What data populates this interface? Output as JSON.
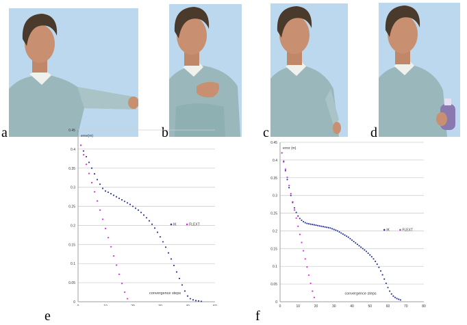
{
  "figure": {
    "panel_labels": {
      "a": "a",
      "b": "b",
      "c": "c",
      "d": "d",
      "e": "e",
      "f": "f"
    }
  },
  "colors": {
    "background_sky": "#bcd8ee",
    "shirt": "#9ab8bb",
    "skin": "#c89070",
    "hair": "#4a3a2c",
    "series_ik": "#2f3a9c",
    "series_flext": "#e02be0",
    "grid": "#cfcfcf"
  },
  "chart_data": [
    {
      "type": "scatter",
      "panel": "e",
      "ylabel": "error(m)",
      "xlabel": "convergence steps",
      "xlim": [
        0,
        50
      ],
      "ylim": [
        0,
        0.45
      ],
      "xticks": [
        "0",
        "10",
        "20",
        "30",
        "40",
        "50"
      ],
      "yticks": [
        "0",
        "0.05",
        "0.1",
        "0.15",
        "0.2",
        "0.25",
        "0.3",
        "0.35",
        "0.4",
        "0.45"
      ],
      "grid": true,
      "legend": {
        "placement": "right",
        "entries": [
          "IK",
          "FLEXT"
        ]
      },
      "series": [
        {
          "name": "IK",
          "x": [
            1,
            2,
            3,
            4,
            5,
            6,
            7,
            8,
            9,
            10,
            11,
            12,
            13,
            14,
            15,
            16,
            17,
            18,
            19,
            20,
            21,
            22,
            23,
            24,
            25,
            26,
            27,
            28,
            29,
            30,
            31,
            32,
            33,
            34,
            35,
            36,
            37,
            38,
            39,
            40,
            41,
            42,
            43,
            44,
            45
          ],
          "y": [
            0.41,
            0.395,
            0.38,
            0.365,
            0.35,
            0.335,
            0.32,
            0.308,
            0.297,
            0.29,
            0.287,
            0.283,
            0.279,
            0.275,
            0.271,
            0.267,
            0.263,
            0.259,
            0.255,
            0.25,
            0.245,
            0.24,
            0.234,
            0.227,
            0.22,
            0.212,
            0.203,
            0.193,
            0.182,
            0.17,
            0.157,
            0.143,
            0.128,
            0.112,
            0.095,
            0.078,
            0.061,
            0.044,
            0.028,
            0.015,
            0.008,
            0.005,
            0.003,
            0.002,
            0.001
          ]
        },
        {
          "name": "FLEXT",
          "x": [
            1,
            2,
            3,
            4,
            5,
            6,
            7,
            8,
            9,
            10,
            11,
            12,
            13,
            14,
            15,
            16,
            17,
            18
          ],
          "y": [
            0.41,
            0.385,
            0.36,
            0.336,
            0.312,
            0.288,
            0.264,
            0.24,
            0.216,
            0.192,
            0.168,
            0.144,
            0.12,
            0.096,
            0.072,
            0.048,
            0.025,
            0.008
          ]
        }
      ]
    },
    {
      "type": "scatter",
      "panel": "f",
      "ylabel": "error (m)",
      "xlabel": "convergence steps",
      "xlim": [
        0,
        80
      ],
      "ylim": [
        0,
        0.45
      ],
      "xticks": [
        "0",
        "10",
        "20",
        "30",
        "40",
        "50",
        "60",
        "70",
        "80"
      ],
      "yticks": [
        "0",
        "0.05",
        "0.1",
        "0.15",
        "0.2",
        "0.25",
        "0.3",
        "0.35",
        "0.4",
        "0.45"
      ],
      "grid": true,
      "legend": {
        "placement": "right",
        "entries": [
          "IK",
          "FLEXT"
        ]
      },
      "series": [
        {
          "name": "IK",
          "x": [
            1,
            2,
            3,
            4,
            5,
            6,
            7,
            8,
            9,
            10,
            11,
            12,
            13,
            14,
            15,
            16,
            17,
            18,
            19,
            20,
            21,
            22,
            23,
            24,
            25,
            26,
            27,
            28,
            29,
            30,
            31,
            32,
            33,
            34,
            35,
            36,
            37,
            38,
            39,
            40,
            41,
            42,
            43,
            44,
            45,
            46,
            47,
            48,
            49,
            50,
            51,
            52,
            53,
            54,
            55,
            56,
            57,
            58,
            59,
            60,
            61,
            62,
            63,
            64,
            65,
            66,
            67
          ],
          "y": [
            0.42,
            0.395,
            0.37,
            0.345,
            0.322,
            0.3,
            0.28,
            0.265,
            0.252,
            0.242,
            0.235,
            0.23,
            0.226,
            0.223,
            0.221,
            0.22,
            0.219,
            0.218,
            0.217,
            0.216,
            0.215,
            0.214,
            0.213,
            0.212,
            0.211,
            0.21,
            0.209,
            0.208,
            0.206,
            0.204,
            0.202,
            0.2,
            0.197,
            0.194,
            0.191,
            0.188,
            0.185,
            0.182,
            0.178,
            0.174,
            0.17,
            0.166,
            0.162,
            0.158,
            0.154,
            0.15,
            0.146,
            0.142,
            0.137,
            0.132,
            0.127,
            0.121,
            0.114,
            0.106,
            0.097,
            0.087,
            0.076,
            0.064,
            0.052,
            0.04,
            0.03,
            0.022,
            0.016,
            0.012,
            0.009,
            0.007,
            0.005
          ]
        },
        {
          "name": "FLEXT",
          "x": [
            1,
            2,
            3,
            4,
            5,
            6,
            7,
            8,
            9,
            10,
            11,
            12,
            13,
            14,
            15,
            16,
            17,
            18,
            19
          ],
          "y": [
            0.42,
            0.397,
            0.374,
            0.351,
            0.328,
            0.305,
            0.282,
            0.259,
            0.236,
            0.213,
            0.19,
            0.167,
            0.144,
            0.121,
            0.098,
            0.075,
            0.052,
            0.03,
            0.012
          ]
        }
      ]
    }
  ]
}
